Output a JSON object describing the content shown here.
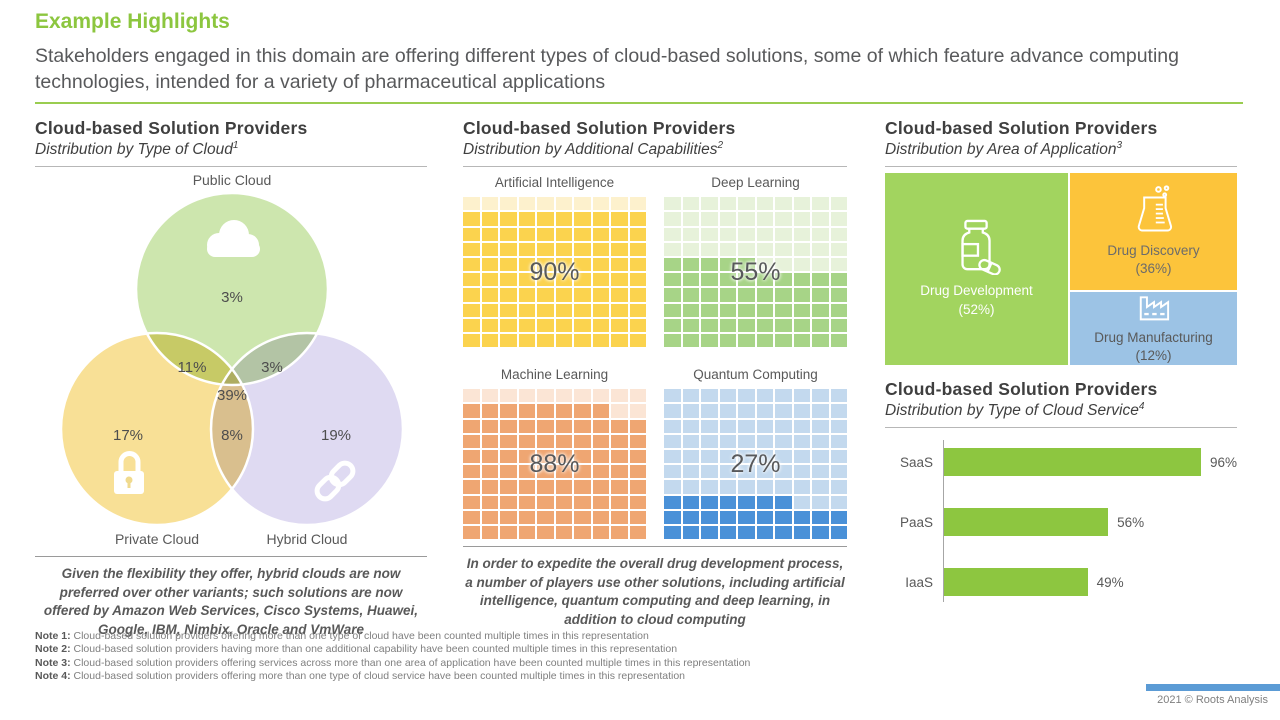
{
  "slide": {
    "title": "Example Highlights",
    "subtitle": "Stakeholders engaged in this domain are offering different types of cloud-based solutions, some of which feature advance computing technologies, intended for a variety of pharmaceutical applications",
    "footer": "2021 © Roots Analysis"
  },
  "chart_data": [
    {
      "type": "venn",
      "panel_title": "Cloud-based Solution Providers",
      "subtitle": "Distribution by Type of Cloud",
      "footnote_marker": "1",
      "sets": {
        "public": "Public Cloud",
        "private": "Private Cloud",
        "hybrid": "Hybrid Cloud"
      },
      "regions": {
        "public_only": "3%",
        "public_private": "11%",
        "public_hybrid": "3%",
        "center": "39%",
        "private_only": "17%",
        "private_hybrid": "8%",
        "hybrid_only": "19%"
      },
      "colors": {
        "public": "#cde6ae",
        "private": "#f8e096",
        "hybrid": "#dfdaf2"
      },
      "callout": "Given the flexibility they offer, hybrid clouds are now preferred over other variants; such solutions are now offered by Amazon Web Services, Cisco Systems, Huawei, Google, IBM, Nimbix, Oracle and VmWare"
    },
    {
      "type": "waffle",
      "panel_title": "Cloud-based Solution Providers",
      "subtitle": "Distribution by Additional Capabilities",
      "footnote_marker": "2",
      "grid": "10x10",
      "series": [
        {
          "name": "Artificial Intelligence",
          "value": 90,
          "value_label": "90%",
          "fill": "#fbd34e",
          "empty": "#fdf1cd"
        },
        {
          "name": "Deep Learning",
          "value": 55,
          "value_label": "55%",
          "fill": "#a7d487",
          "empty": "#e7f2da"
        },
        {
          "name": "Machine Learning",
          "value": 88,
          "value_label": "88%",
          "fill": "#efa672",
          "empty": "#fbe5d5"
        },
        {
          "name": "Quantum Computing",
          "value": 27,
          "value_label": "27%",
          "fill": "#4a91d8",
          "empty": "#c3d9ee"
        }
      ],
      "callout": "In order to expedite the overall drug development process, a number of players use other solutions, including artificial intelligence, quantum computing and deep learning, in addition to cloud computing"
    },
    {
      "type": "treemap",
      "panel_title": "Cloud-based Solution Providers",
      "subtitle": "Distribution by Area of Application",
      "footnote_marker": "3",
      "items": [
        {
          "label": "Drug Development",
          "value": 52,
          "value_label": "(52%)",
          "color": "#a2d45f",
          "text_color": "#fefefe",
          "icon": "pill-bottle-icon"
        },
        {
          "label": "Drug Discovery",
          "value": 36,
          "value_label": "(36%)",
          "color": "#fcc43b",
          "text_color": "#6b6b6b",
          "icon": "beaker-icon"
        },
        {
          "label": "Drug Manufacturing",
          "value": 12,
          "value_label": "(12%)",
          "color": "#9cc3e5",
          "text_color": "#595959",
          "icon": "factory-icon"
        }
      ]
    },
    {
      "type": "bar",
      "panel_title": "Cloud-based Solution Providers",
      "subtitle": "Distribution by Type of Cloud Service",
      "footnote_marker": "4",
      "orientation": "horizontal",
      "categories": [
        "SaaS",
        "PaaS",
        "IaaS"
      ],
      "values": [
        96,
        56,
        49
      ],
      "value_labels": [
        "96%",
        "56%",
        "49%"
      ],
      "bar_color": "#8dc640",
      "xlim": [
        0,
        100
      ],
      "grid": "off",
      "legend": "none"
    }
  ],
  "notes": [
    {
      "label": "Note 1:",
      "text": "Cloud-based solution providers offering more than one type of cloud have been counted multiple times in this representation"
    },
    {
      "label": "Note 2:",
      "text": "Cloud-based solution providers having more than one additional capability have been counted multiple times in this representation"
    },
    {
      "label": "Note 3:",
      "text": "Cloud-based solution providers offering services across more than one area of application have been counted multiple times in this representation"
    },
    {
      "label": "Note 4:",
      "text": "Cloud-based solution providers offering more than one type of cloud service have been counted multiple times in this representation"
    }
  ]
}
